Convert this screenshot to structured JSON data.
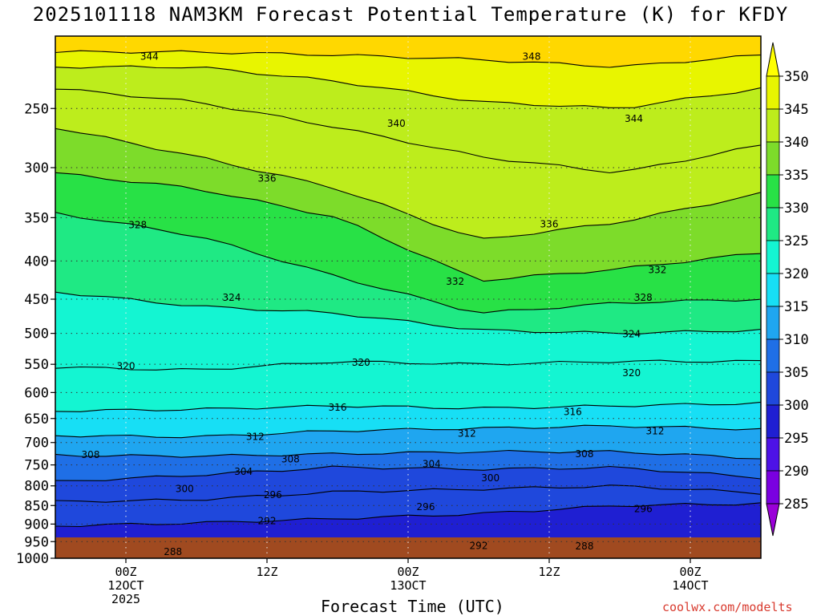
{
  "chart_data": {
    "type": "heatmap",
    "title": "2025101118 NAM3KM Forecast Potential Temperature (K) for KFDY",
    "xlabel": "Forecast Time (UTC)",
    "ylabel": "",
    "y_axis": {
      "scale": "log-pressure",
      "inverted": true,
      "ylim": [
        1000,
        200
      ],
      "ticks": [
        250,
        300,
        350,
        400,
        450,
        500,
        550,
        600,
        650,
        700,
        750,
        800,
        850,
        900,
        950,
        1000
      ]
    },
    "x_axis": {
      "ticks": [
        {
          "h": 6,
          "lines": [
            "00Z",
            "12OCT",
            "2025"
          ]
        },
        {
          "h": 18,
          "lines": [
            "12Z"
          ]
        },
        {
          "h": 30,
          "lines": [
            "00Z",
            "13OCT"
          ]
        },
        {
          "h": 42,
          "lines": [
            "12Z"
          ]
        },
        {
          "h": 54,
          "lines": [
            "00Z",
            "14OCT"
          ]
        }
      ],
      "xlim_hours": [
        0,
        60
      ]
    },
    "colorbar": {
      "units": "K",
      "ticks": [
        350,
        345,
        340,
        335,
        330,
        325,
        320,
        315,
        310,
        305,
        300,
        295,
        290,
        285
      ],
      "colors": [
        "#ffff00",
        "#e8f500",
        "#bded1c",
        "#7ddc2a",
        "#28e146",
        "#1fe984",
        "#14f5d2",
        "#17dff5",
        "#1fa6f0",
        "#1f6fe6",
        "#1f48dc",
        "#1f1fd2",
        "#4d12e6",
        "#7a00e0",
        "#9a00d8"
      ]
    },
    "contour_levels": [
      288,
      292,
      296,
      300,
      304,
      308,
      312,
      316,
      320,
      324,
      328,
      332,
      336,
      340,
      344,
      348
    ],
    "isentropes": [
      {
        "theta": 288,
        "p": [
          986,
          986,
          984,
          986,
          984,
          984
        ]
      },
      {
        "theta": 292,
        "p": [
          965,
          960,
          955,
          962,
          960,
          955
        ]
      },
      {
        "theta": 296,
        "p": [
          905,
          897,
          885,
          872,
          850,
          845
        ]
      },
      {
        "theta": 300,
        "p": [
          840,
          835,
          815,
          808,
          800,
          818
        ]
      },
      {
        "theta": 304,
        "p": [
          790,
          774,
          755,
          760,
          756,
          780
        ]
      },
      {
        "theta": 308,
        "p": [
          728,
          730,
          725,
          720,
          720,
          735
        ]
      },
      {
        "theta": 312,
        "p": [
          685,
          688,
          675,
          670,
          665,
          672
        ]
      },
      {
        "theta": 316,
        "p": [
          635,
          632,
          625,
          630,
          625,
          620
        ]
      },
      {
        "theta": 320,
        "p": [
          555,
          560,
          545,
          550,
          545,
          545
        ]
      },
      {
        "theta": 324,
        "p": [
          440,
          460,
          470,
          495,
          500,
          495
        ]
      },
      {
        "theta": 328,
        "p": [
          345,
          370,
          420,
          470,
          455,
          450
        ]
      },
      {
        "theta": 332,
        "p": [
          305,
          320,
          350,
          425,
          410,
          390
        ]
      },
      {
        "theta": 336,
        "p": [
          265,
          290,
          320,
          375,
          355,
          325
        ]
      },
      {
        "theta": 340,
        "p": [
          235,
          245,
          265,
          290,
          305,
          280
        ]
      },
      {
        "theta": 344,
        "p": [
          220,
          220,
          230,
          245,
          250,
          235
        ]
      },
      {
        "theta": 348,
        "p": [
          210,
          210,
          212,
          215,
          220,
          212
        ]
      }
    ],
    "contour_labels": [
      {
        "v": "344",
        "h": 8.0,
        "p": 213
      },
      {
        "v": "348",
        "h": 40.5,
        "p": 213
      },
      {
        "v": "340",
        "h": 29.0,
        "p": 262
      },
      {
        "v": "344",
        "h": 49.2,
        "p": 258
      },
      {
        "v": "336",
        "h": 18.0,
        "p": 310
      },
      {
        "v": "328",
        "h": 7.0,
        "p": 358
      },
      {
        "v": "336",
        "h": 42.0,
        "p": 357
      },
      {
        "v": "332",
        "h": 34.0,
        "p": 426
      },
      {
        "v": "332",
        "h": 51.2,
        "p": 411
      },
      {
        "v": "324",
        "h": 15.0,
        "p": 448
      },
      {
        "v": "328",
        "h": 50.0,
        "p": 448
      },
      {
        "v": "324",
        "h": 49.0,
        "p": 501
      },
      {
        "v": "320",
        "h": 6.0,
        "p": 553
      },
      {
        "v": "320",
        "h": 26.0,
        "p": 547
      },
      {
        "v": "320",
        "h": 49.0,
        "p": 565
      },
      {
        "v": "316",
        "h": 24.0,
        "p": 628
      },
      {
        "v": "316",
        "h": 44.0,
        "p": 637
      },
      {
        "v": "312",
        "h": 17.0,
        "p": 688
      },
      {
        "v": "312",
        "h": 35.0,
        "p": 681
      },
      {
        "v": "312",
        "h": 51.0,
        "p": 676
      },
      {
        "v": "308",
        "h": 3.0,
        "p": 727
      },
      {
        "v": "308",
        "h": 20.0,
        "p": 737
      },
      {
        "v": "308",
        "h": 45.0,
        "p": 725
      },
      {
        "v": "304",
        "h": 16.0,
        "p": 766
      },
      {
        "v": "304",
        "h": 32.0,
        "p": 748
      },
      {
        "v": "300",
        "h": 11.0,
        "p": 807
      },
      {
        "v": "300",
        "h": 37.0,
        "p": 781
      },
      {
        "v": "296",
        "h": 18.5,
        "p": 823
      },
      {
        "v": "296",
        "h": 31.5,
        "p": 854
      },
      {
        "v": "296",
        "h": 50.0,
        "p": 859
      },
      {
        "v": "292",
        "h": 18.0,
        "p": 891
      },
      {
        "v": "292",
        "h": 36.0,
        "p": 962
      },
      {
        "v": "288",
        "h": 10.0,
        "p": 981
      },
      {
        "v": "288",
        "h": 45.0,
        "p": 963
      }
    ]
  },
  "credit": "coolwx.com/modelts"
}
